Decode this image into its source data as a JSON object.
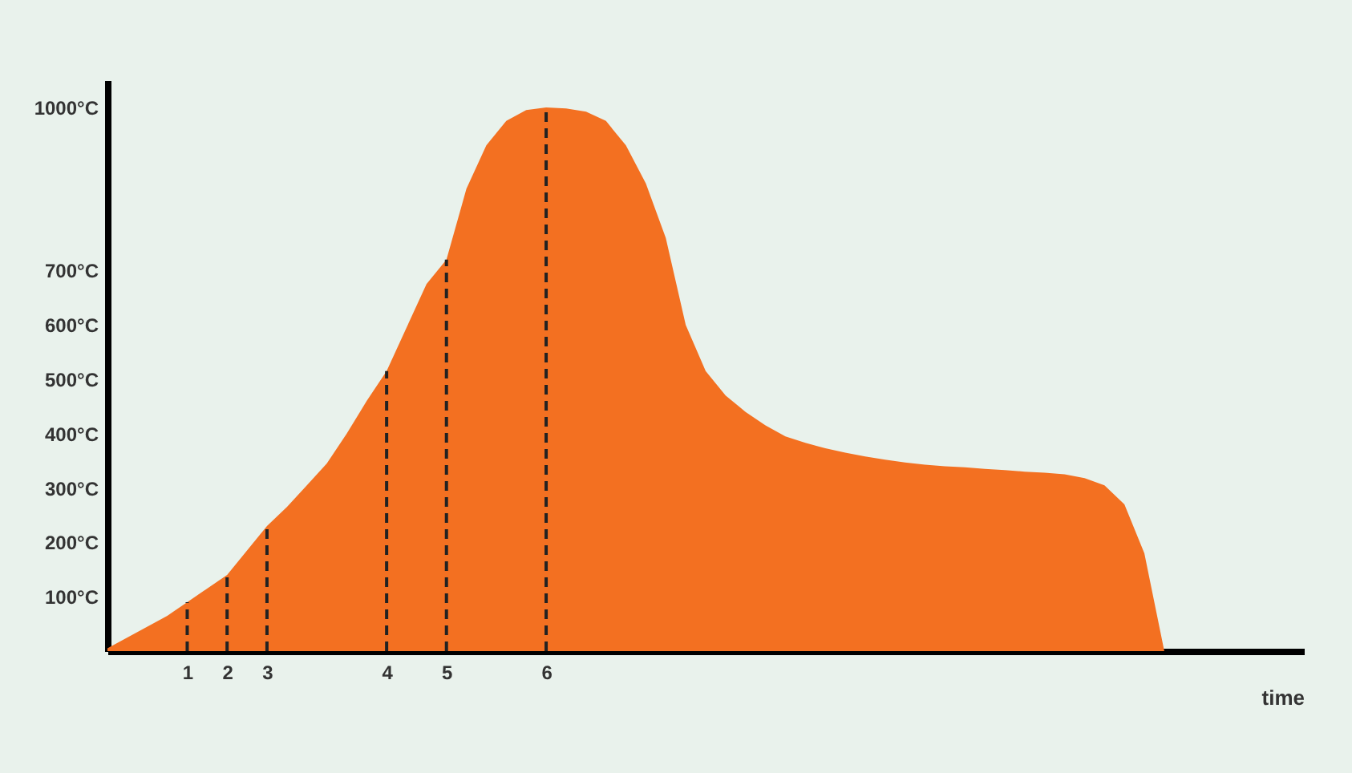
{
  "chart_data": {
    "type": "area",
    "xlabel": "time",
    "categories": [
      null,
      null,
      null,
      null,
      "1",
      null,
      "2",
      null,
      "3",
      null,
      null,
      null,
      null,
      null,
      "4",
      null,
      null,
      "5",
      null,
      null,
      null,
      null,
      "6",
      null,
      null,
      null,
      null,
      null,
      null,
      null,
      null,
      null,
      null,
      null,
      null,
      null,
      null,
      null,
      null,
      null,
      null,
      null,
      null,
      null,
      null,
      null,
      null,
      null,
      null,
      null,
      null,
      null,
      null,
      null,
      null,
      null,
      null,
      null,
      null,
      null,
      null
    ],
    "series": [
      {
        "color": "#f37021",
        "values": [
          5,
          25,
          45,
          65,
          90,
          115,
          140,
          185,
          230,
          265,
          305,
          345,
          400,
          460,
          515,
          595,
          675,
          720,
          850,
          930,
          975,
          995,
          1000,
          998,
          992,
          975,
          930,
          860,
          760,
          600,
          515,
          470,
          440,
          415,
          395,
          383,
          373,
          365,
          358,
          352,
          347,
          343,
          340,
          338,
          335,
          333,
          330,
          328,
          325,
          318,
          305,
          270,
          180,
          0,
          null,
          null,
          null,
          null,
          null,
          null,
          null
        ]
      }
    ],
    "ylim": [
      0,
      1050
    ],
    "yticks": [
      {
        "value": 100,
        "label": "100°C"
      },
      {
        "value": 200,
        "label": "200°C"
      },
      {
        "value": 300,
        "label": "300°C"
      },
      {
        "value": 400,
        "label": "400°C"
      },
      {
        "value": 500,
        "label": "500°C"
      },
      {
        "value": 600,
        "label": "600°C"
      },
      {
        "value": 700,
        "label": "700°C"
      },
      {
        "value": 1000,
        "label": "1000°C"
      }
    ],
    "ref_lines": [
      {
        "axis": "x",
        "value": "1",
        "line_style": "dashed"
      },
      {
        "axis": "x",
        "value": "2",
        "line_style": "dashed"
      },
      {
        "axis": "x",
        "value": "3",
        "line_style": "dashed"
      },
      {
        "axis": "x",
        "value": "4",
        "line_style": "dashed"
      },
      {
        "axis": "x",
        "value": "5",
        "line_style": "dashed"
      },
      {
        "axis": "x",
        "value": "6",
        "line_style": "dashed"
      }
    ],
    "grid": false
  }
}
